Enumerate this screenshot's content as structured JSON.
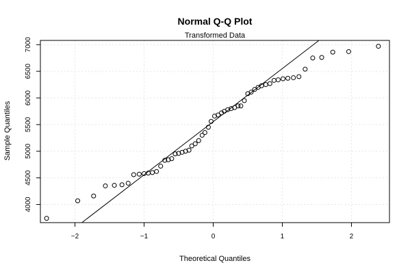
{
  "chart_data": {
    "type": "scatter",
    "title": "Normal Q-Q Plot",
    "subtitle": "Transformed Data",
    "xlabel": "Theoretical Quantiles",
    "ylabel": "Sample Quantiles",
    "xlim": [
      -2.5,
      2.55
    ],
    "ylim": [
      3660,
      7080
    ],
    "x_ticks": [
      -2,
      -1,
      0,
      1,
      2
    ],
    "x_tick_labels": [
      "−2",
      "−1",
      "0",
      "1",
      "2"
    ],
    "y_ticks": [
      4000,
      4500,
      5000,
      5500,
      6000,
      6500,
      7000
    ],
    "y_tick_labels": [
      "4000",
      "4500",
      "5000",
      "5500",
      "6000",
      "6500",
      "7000"
    ],
    "grid": true,
    "reference_line": {
      "x": [
        -1.9,
        1.53
      ],
      "y": [
        3660,
        7080
      ]
    },
    "points": {
      "x": [
        -2.41,
        -1.96,
        -1.73,
        -1.56,
        -1.43,
        -1.32,
        -1.23,
        -1.15,
        -1.07,
        -1.0,
        -0.94,
        -0.88,
        -0.82,
        -0.76,
        -0.7,
        -0.65,
        -0.6,
        -0.55,
        -0.5,
        -0.45,
        -0.4,
        -0.35,
        -0.31,
        -0.26,
        -0.21,
        -0.16,
        -0.12,
        -0.07,
        -0.03,
        0.02,
        0.07,
        0.12,
        0.16,
        0.21,
        0.26,
        0.31,
        0.36,
        0.4,
        0.45,
        0.5,
        0.55,
        0.6,
        0.65,
        0.7,
        0.76,
        0.82,
        0.88,
        0.94,
        1.01,
        1.08,
        1.16,
        1.24,
        1.33,
        1.44,
        1.57,
        1.73,
        1.96,
        2.39
      ],
      "y": [
        3740,
        4070,
        4160,
        4350,
        4360,
        4370,
        4400,
        4560,
        4570,
        4580,
        4590,
        4600,
        4620,
        4720,
        4830,
        4840,
        4860,
        4950,
        4960,
        4980,
        5000,
        5020,
        5100,
        5140,
        5200,
        5300,
        5350,
        5450,
        5560,
        5660,
        5680,
        5720,
        5750,
        5780,
        5800,
        5820,
        5850,
        5850,
        5950,
        6080,
        6110,
        6160,
        6200,
        6230,
        6250,
        6270,
        6330,
        6340,
        6360,
        6370,
        6380,
        6400,
        6540,
        6750,
        6760,
        6860,
        6870,
        6970
      ]
    }
  }
}
